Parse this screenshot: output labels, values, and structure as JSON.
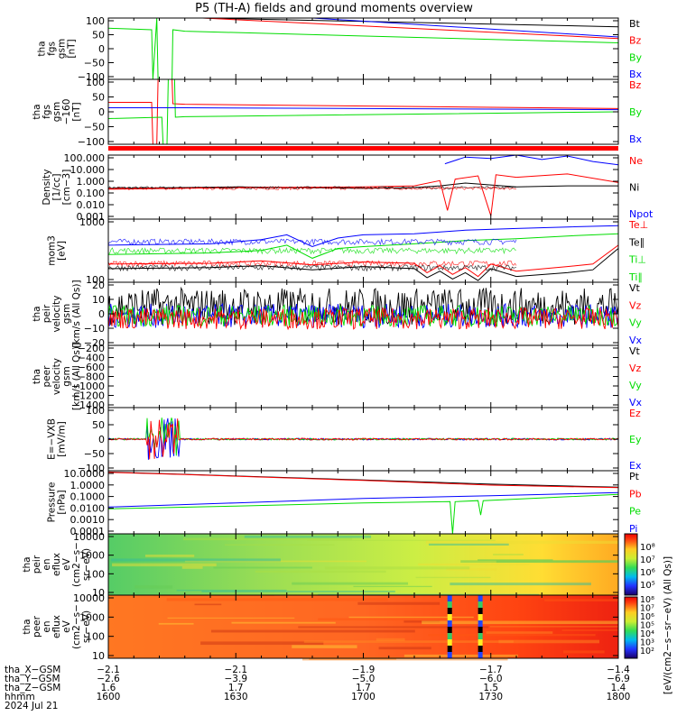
{
  "title": "P5 (TH-A) fields and ground moments overview",
  "date_label": "2024 Jul 21",
  "colors": {
    "black": "#000000",
    "red": "#ff0000",
    "green": "#00dd00",
    "blue": "#0000ff"
  },
  "chart_data": [
    {
      "type": "line",
      "ylabel": [
        "tha",
        "fgs",
        "gsm",
        "[nT]"
      ],
      "yticks": [
        "100",
        "50",
        "0",
        "−50",
        "−100"
      ],
      "ylim": [
        -100,
        110
      ],
      "legend": [
        {
          "label": "Bt",
          "color": "#000000"
        },
        {
          "label": "Bz",
          "color": "#ff0000"
        },
        {
          "label": "By",
          "color": "#00dd00"
        },
        {
          "label": "Bx",
          "color": "#0000ff"
        }
      ],
      "series": [
        {
          "color": "#000000",
          "x": [
            1637,
            1800
          ],
          "y": [
            110,
            80
          ]
        },
        {
          "color": "#ff0000",
          "x": [
            1637,
            1800
          ],
          "y": [
            110,
            40
          ]
        },
        {
          "color": "#00dd00",
          "x": [
            1600,
            1617,
            1617.5,
            1619,
            1619.5,
            1625,
            1625.3,
            1630,
            1800
          ],
          "y": [
            75,
            70,
            -100,
            110,
            -100,
            -100,
            70,
            65,
            25
          ]
        },
        {
          "color": "#0000ff",
          "x": [
            1680,
            1800
          ],
          "y": [
            110,
            45
          ]
        }
      ]
    },
    {
      "type": "line",
      "ylabel": [
        "tha",
        "fgs",
        "gsm",
        "−160",
        "[nT]"
      ],
      "yticks": [
        "100",
        "50",
        "0",
        "−50",
        "−100"
      ],
      "ylim": [
        -130,
        110
      ],
      "legend": [
        {
          "label": "Bz",
          "color": "#ff0000"
        },
        {
          "label": "By",
          "color": "#00dd00"
        },
        {
          "label": "Bx",
          "color": "#0000ff"
        }
      ],
      "series": [
        {
          "color": "#ff0000",
          "x": [
            1600,
            1617,
            1617.5,
            1619,
            1619.5,
            1625,
            1625.3,
            1630,
            1800
          ],
          "y": [
            25,
            25,
            -130,
            -130,
            110,
            110,
            20,
            18,
            2
          ]
        },
        {
          "color": "#00dd00",
          "x": [
            1600,
            1621,
            1621.5,
            1623,
            1623.5,
            1626,
            1626.3,
            1630,
            1800
          ],
          "y": [
            -35,
            -30,
            -130,
            -130,
            110,
            110,
            -30,
            -28,
            -10
          ]
        },
        {
          "color": "#0000ff",
          "x": [
            1600,
            1630,
            1800
          ],
          "y": [
            5,
            5,
            -2
          ]
        }
      ]
    },
    {
      "type": "line",
      "ylabel": [
        "Density",
        "[1/cc]",
        "[cm−3]"
      ],
      "yticks": [
        "100.000",
        "10.000",
        "1.000",
        "0.100",
        "0.010",
        "0.001"
      ],
      "ylim": [
        0.0005,
        300
      ],
      "log": true,
      "legend": [
        {
          "label": "Ne",
          "color": "#ff0000"
        },
        {
          "label": "Ni",
          "color": "#000000"
        },
        {
          "label": "Npot",
          "color": "#0000ff"
        }
      ],
      "series": [
        {
          "color": "#000000",
          "x": [
            1600,
            1650,
            1700,
            1720,
            1730,
            1740,
            1760,
            1780,
            1800
          ],
          "y": [
            0.3,
            0.4,
            0.3,
            0.35,
            0.5,
            0.9,
            0.4,
            0.5,
            0.5
          ]
        },
        {
          "color": "#ff0000",
          "x": [
            1600,
            1650,
            1700,
            1720,
            1730,
            1733,
            1736,
            1745,
            1750,
            1752,
            1760,
            1780,
            1800
          ],
          "y": [
            0.25,
            0.35,
            0.4,
            0.5,
            1.5,
            0.003,
            2.0,
            4.0,
            0.001,
            5.0,
            3.0,
            6.0,
            1.0
          ]
        },
        {
          "color": "#0000ff",
          "x": [
            1732,
            1740,
            1750,
            1760,
            1770,
            1780,
            1790,
            1800
          ],
          "y": [
            50,
            200,
            150,
            300,
            120,
            250,
            80,
            40
          ]
        }
      ]
    },
    {
      "type": "line",
      "ylabel": [
        "mom3",
        "[eV]"
      ],
      "yticks": [
        "1000",
        "100"
      ],
      "ylim": [
        30,
        8000
      ],
      "log": true,
      "legend": [
        {
          "label": "Te⊥",
          "color": "#ff0000"
        },
        {
          "label": "Te∥",
          "color": "#000000"
        },
        {
          "label": "Ti⊥",
          "color": "#00dd00"
        },
        {
          "label": "Ti∥",
          "color": "#00dd00"
        }
      ],
      "series": [
        {
          "color": "#0000ff",
          "x": [
            1600,
            1640,
            1660,
            1670,
            1680,
            1690,
            1700,
            1720,
            1740,
            1760,
            1780,
            1800
          ],
          "y": [
            800,
            900,
            1300,
            2000,
            700,
            1500,
            2000,
            2200,
            3000,
            3500,
            4000,
            4500
          ]
        },
        {
          "color": "#00dd00",
          "x": [
            1600,
            1640,
            1660,
            1670,
            1680,
            1690,
            1700,
            1720,
            1740,
            1760,
            1780,
            1800
          ],
          "y": [
            350,
            400,
            500,
            800,
            250,
            600,
            700,
            900,
            1200,
            1400,
            1800,
            2200
          ]
        },
        {
          "color": "#ff0000",
          "x": [
            1600,
            1640,
            1660,
            1680,
            1700,
            1720,
            1725,
            1730,
            1735,
            1740,
            1745,
            1750,
            1760,
            1780,
            1790,
            1800
          ],
          "y": [
            150,
            160,
            200,
            140,
            180,
            160,
            70,
            130,
            60,
            110,
            50,
            150,
            80,
            120,
            150,
            800
          ]
        },
        {
          "color": "#000000",
          "x": [
            1600,
            1640,
            1660,
            1680,
            1700,
            1720,
            1725,
            1730,
            1735,
            1740,
            1745,
            1750,
            1760,
            1780,
            1790,
            1800
          ],
          "y": [
            100,
            110,
            130,
            90,
            120,
            100,
            45,
            80,
            40,
            70,
            35,
            100,
            50,
            70,
            90,
            600
          ]
        }
      ]
    },
    {
      "type": "line",
      "ylabel": [
        "tha",
        "peir",
        "velocity",
        "gsm",
        "[km/s (All Qs)]"
      ],
      "yticks": [
        "20",
        "10",
        "0",
        "−10",
        "−20"
      ],
      "ylim": [
        -22,
        25
      ],
      "legend": [
        {
          "label": "Vt",
          "color": "#000000"
        },
        {
          "label": "Vz",
          "color": "#ff0000"
        },
        {
          "label": "Vy",
          "color": "#00dd00"
        },
        {
          "label": "Vx",
          "color": "#0000ff"
        }
      ]
    },
    {
      "type": "line",
      "ylabel": [
        "tha",
        "peer",
        "velocity",
        "gsm",
        "[km/s (All Qs)]"
      ],
      "yticks": [
        "−200",
        "−400",
        "−600",
        "−800",
        "−1000",
        "−1200",
        "−1400"
      ],
      "ylim": [
        -1500,
        -150
      ],
      "legend": [
        {
          "label": "Vt",
          "color": "#000000"
        },
        {
          "label": "Vz",
          "color": "#ff0000"
        },
        {
          "label": "Vy",
          "color": "#00dd00"
        },
        {
          "label": "Vx",
          "color": "#0000ff"
        }
      ]
    },
    {
      "type": "line",
      "ylabel": [
        "E=−VXB",
        "[mV/m]"
      ],
      "yticks": [
        "100",
        "50",
        "0",
        "−50",
        "−100"
      ],
      "ylim": [
        -110,
        110
      ],
      "legend": [
        {
          "label": "Ez",
          "color": "#ff0000"
        },
        {
          "label": "Ey",
          "color": "#00dd00"
        },
        {
          "label": "Ex",
          "color": "#0000ff"
        }
      ]
    },
    {
      "type": "line",
      "ylabel": [
        "Pressure",
        "[nPa]"
      ],
      "yticks": [
        "10.0000",
        "1.0000",
        "0.1000",
        "0.0100",
        "0.0010",
        "0.0001"
      ],
      "ylim": [
        3e-05,
        40
      ],
      "log": true,
      "legend": [
        {
          "label": "Pt",
          "color": "#000000"
        },
        {
          "label": "Pb",
          "color": "#ff0000"
        },
        {
          "label": "Pe",
          "color": "#00dd00"
        },
        {
          "label": "Pi",
          "color": "#0000ff"
        }
      ],
      "series": [
        {
          "color": "#000000",
          "x": [
            1600,
            1630,
            1700,
            1750,
            1800
          ],
          "y": [
            30,
            18,
            5,
            2,
            1
          ]
        },
        {
          "color": "#ff0000",
          "x": [
            1600,
            1630,
            1700,
            1750,
            1800
          ],
          "y": [
            28,
            17,
            4.5,
            1.6,
            0.9
          ]
        },
        {
          "color": "#0000ff",
          "x": [
            1600,
            1650,
            1700,
            1750,
            1800
          ],
          "y": [
            0.012,
            0.03,
            0.08,
            0.15,
            0.3
          ]
        },
        {
          "color": "#00dd00",
          "x": [
            1600,
            1650,
            1700,
            1734,
            1735,
            1736,
            1745,
            1746,
            1747,
            1800
          ],
          "y": [
            0.008,
            0.015,
            0.03,
            0.04,
            3e-05,
            0.04,
            0.05,
            0.002,
            0.05,
            0.2
          ]
        }
      ]
    },
    {
      "type": "heatmap",
      "ylabel": [
        "tha",
        "peir",
        "en",
        "eflux",
        "eV",
        "(cm2−s−",
        "sr−eV)"
      ],
      "yticks": [
        "10000",
        "1000",
        "100",
        "10"
      ]
    },
    {
      "type": "heatmap",
      "ylabel": [
        "tha",
        "peer",
        "en",
        "eflux",
        "eV",
        "(cm2−s−",
        "sr−eV)"
      ],
      "yticks": [
        "10000",
        "1000",
        "100",
        "10"
      ]
    }
  ],
  "colorbar": {
    "title": "[eV/(cm2−s−sr−eV) (All Qs)]",
    "upper_ticks": [
      "10⁸",
      "10⁷",
      "10⁶",
      "10⁵"
    ],
    "lower_ticks": [
      "10⁸",
      "10⁷",
      "10⁶",
      "10⁵",
      "10⁴",
      "10³",
      "10²"
    ]
  },
  "xaxis": {
    "ticks": [
      "1600",
      "1630",
      "1700",
      "1730",
      "1800"
    ],
    "rows": [
      {
        "label": "tha_X−GSM",
        "values": [
          "−2.1",
          "−2.1",
          "−1.9",
          "−1.7",
          "−1.4"
        ]
      },
      {
        "label": "tha_Y−GSM",
        "values": [
          "−2.6",
          "−3.9",
          "−5.0",
          "−6.0",
          "−6.9"
        ]
      },
      {
        "label": "tha_Z−GSM",
        "values": [
          "1.6",
          "1.7",
          "1.7",
          "1.5",
          "1.4"
        ]
      },
      {
        "label": "hhmm",
        "values": [
          "1600",
          "1630",
          "1700",
          "1730",
          "1800"
        ]
      }
    ]
  }
}
